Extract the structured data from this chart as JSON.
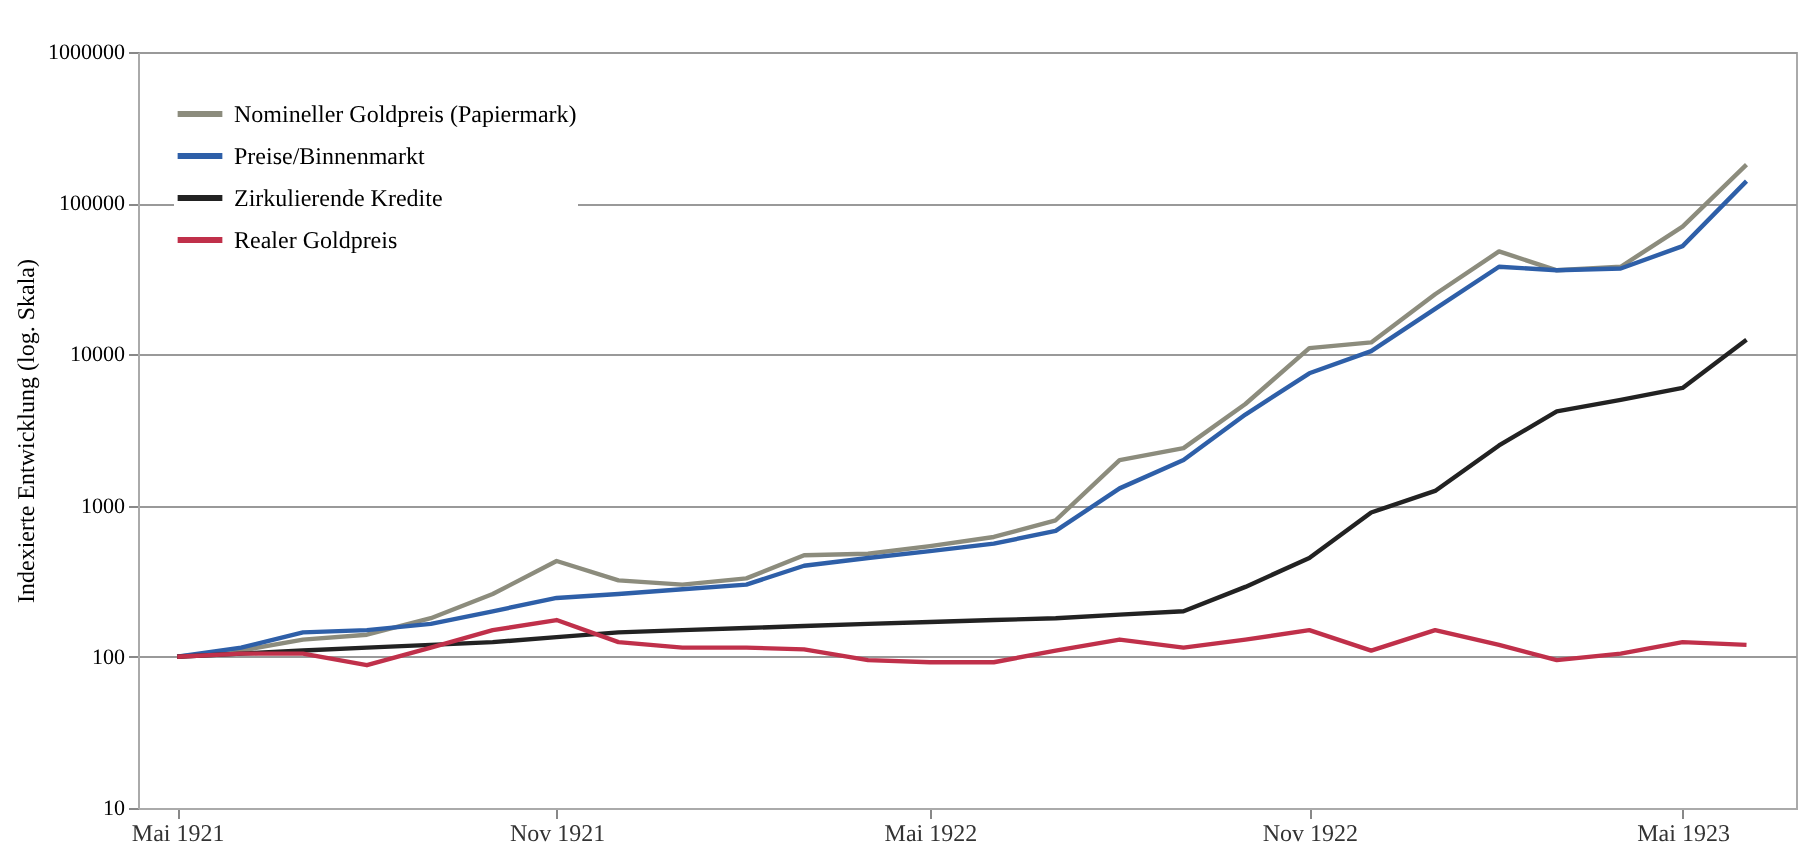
{
  "chart_data": {
    "type": "line",
    "ylabel": "Indexierte Entwicklung (log. Skala)",
    "x": [
      "1921-05",
      "1921-06",
      "1921-07",
      "1921-08",
      "1921-09",
      "1921-10",
      "1921-11",
      "1921-12",
      "1922-01",
      "1922-02",
      "1922-03",
      "1922-04",
      "1922-05",
      "1922-06",
      "1922-07",
      "1922-08",
      "1922-09",
      "1922-10",
      "1922-11",
      "1922-12",
      "1923-01",
      "1923-02",
      "1923-03",
      "1923-04",
      "1923-05",
      "1923-06"
    ],
    "series": [
      {
        "name": "Nomineller Goldpreis (Papiermark)",
        "color": "#8c8c7d",
        "values": [
          100,
          110,
          130,
          140,
          180,
          260,
          430,
          320,
          300,
          330,
          470,
          480,
          540,
          620,
          800,
          2000,
          2400,
          4700,
          11000,
          12000,
          25000,
          48000,
          36000,
          38000,
          70000,
          180000
        ]
      },
      {
        "name": "Preise/Binnenmarkt",
        "color": "#2e5fa8",
        "values": [
          100,
          115,
          145,
          150,
          165,
          200,
          245,
          260,
          280,
          300,
          400,
          450,
          500,
          560,
          680,
          1300,
          2000,
          4000,
          7500,
          10500,
          20000,
          38000,
          36000,
          37000,
          52000,
          140000
        ]
      },
      {
        "name": "Zirkulierende Kredite",
        "color": "#222222",
        "values": [
          100,
          105,
          110,
          115,
          120,
          125,
          135,
          145,
          150,
          155,
          160,
          165,
          170,
          175,
          180,
          190,
          200,
          290,
          450,
          900,
          1250,
          2500,
          4200,
          5000,
          6000,
          12500
        ]
      },
      {
        "name": "Realer Goldpreis",
        "color": "#c0304a",
        "values": [
          100,
          105,
          105,
          88,
          115,
          150,
          175,
          125,
          115,
          115,
          112,
          95,
          92,
          92,
          110,
          130,
          115,
          130,
          150,
          110,
          150,
          120,
          95,
          105,
          125,
          120
        ]
      }
    ],
    "log": true,
    "ylim": [
      10,
      1000000
    ],
    "yticks": [
      10,
      100,
      1000,
      10000,
      100000,
      1000000
    ],
    "xlim": [
      "1921-04-12",
      "1923-06-25"
    ],
    "xticks": [
      {
        "value": "1921-05-01",
        "label": "Mai 1921"
      },
      {
        "value": "1921-11-01",
        "label": "Nov 1921"
      },
      {
        "value": "1922-05-01",
        "label": "Mai 1922"
      },
      {
        "value": "1922-11-01",
        "label": "Nov 1922"
      },
      {
        "value": "1923-05-01",
        "label": "Mai 1923"
      }
    ],
    "grid": "y",
    "legend": "top left",
    "line_style": "solid",
    "marker": "none"
  }
}
